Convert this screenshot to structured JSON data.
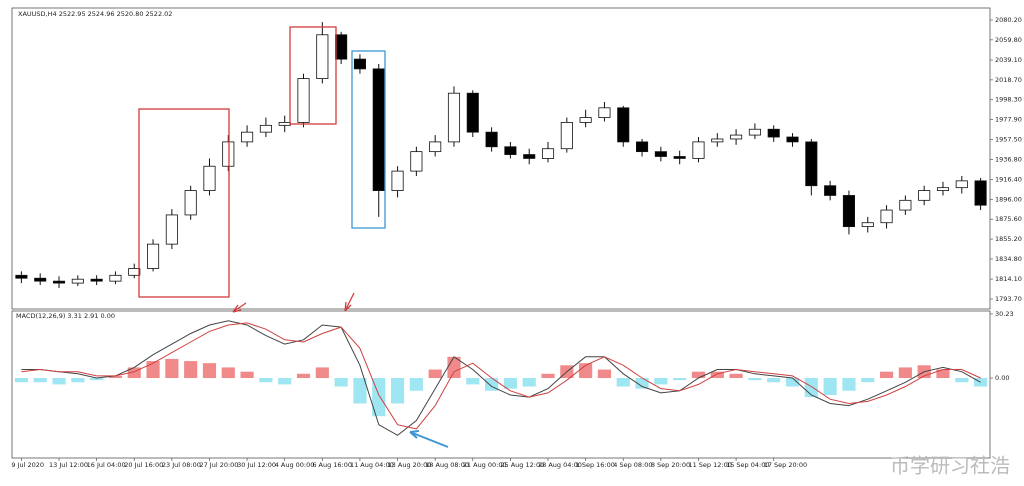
{
  "chart_data": [
    {
      "type": "candlestick",
      "title": "XAUUSD,H4  2522.95 2524.96 2520.80 2522.02",
      "open": [
        1818,
        1815,
        1812,
        1810,
        1814,
        1812,
        1818,
        1825,
        1850,
        1880,
        1905,
        1930,
        1955,
        1965,
        1972,
        1975,
        2020,
        2065,
        2040,
        2030,
        1905,
        1925,
        1945,
        1955,
        2005,
        1965,
        1950,
        1942,
        1938,
        1948,
        1975,
        1980,
        1990,
        1955,
        1945,
        1940,
        1938,
        1955,
        1958,
        1962,
        1968,
        1960,
        1955,
        1910,
        1900,
        1868,
        1872,
        1885,
        1895,
        1905,
        1908,
        1915
      ],
      "high": [
        1822,
        1820,
        1817,
        1818,
        1818,
        1822,
        1830,
        1855,
        1886,
        1910,
        1938,
        1962,
        1972,
        1980,
        1982,
        2025,
        2078,
        2068,
        2045,
        2035,
        1930,
        1950,
        1962,
        2012,
        2008,
        1970,
        1955,
        1948,
        1955,
        1980,
        1988,
        1996,
        1992,
        1958,
        1950,
        1946,
        1960,
        1964,
        1968,
        1974,
        1972,
        1964,
        1958,
        1915,
        1905,
        1878,
        1890,
        1900,
        1910,
        1914,
        1920,
        1918
      ],
      "low": [
        1810,
        1808,
        1805,
        1807,
        1808,
        1809,
        1815,
        1822,
        1845,
        1875,
        1900,
        1925,
        1950,
        1960,
        1965,
        1970,
        2015,
        2035,
        2025,
        1878,
        1898,
        1920,
        1940,
        1950,
        1960,
        1945,
        1938,
        1932,
        1934,
        1944,
        1970,
        1976,
        1950,
        1940,
        1935,
        1932,
        1934,
        1950,
        1952,
        1958,
        1955,
        1950,
        1900,
        1895,
        1860,
        1862,
        1866,
        1880,
        1890,
        1900,
        1902,
        1885
      ],
      "close": [
        1815,
        1812,
        1810,
        1814,
        1812,
        1818,
        1825,
        1850,
        1880,
        1905,
        1930,
        1955,
        1965,
        1972,
        1975,
        2020,
        2065,
        2040,
        2030,
        1905,
        1925,
        1945,
        1955,
        2005,
        1965,
        1950,
        1942,
        1938,
        1948,
        1975,
        1980,
        1990,
        1955,
        1945,
        1940,
        1938,
        1955,
        1958,
        1962,
        1968,
        1960,
        1955,
        1910,
        1900,
        1868,
        1872,
        1885,
        1895,
        1905,
        1908,
        1915,
        1890
      ],
      "up_color": "#ffffff",
      "down_color": "#000000",
      "ylim": [
        1783.4,
        2092.5
      ],
      "yticks": [
        {
          "value": 2080.2,
          "label": "2080.20"
        },
        {
          "value": 2059.8,
          "label": "2059.80"
        },
        {
          "value": 2039.1,
          "label": "2039.10"
        },
        {
          "value": 2018.7,
          "label": "2018.70"
        },
        {
          "value": 1998.3,
          "label": "1998.30"
        },
        {
          "value": 1977.9,
          "label": "1977.90"
        },
        {
          "value": 1957.5,
          "label": "1957.50"
        },
        {
          "value": 1936.8,
          "label": "1936.80"
        },
        {
          "value": 1916.4,
          "label": "1916.40"
        },
        {
          "value": 1896,
          "label": "1896.00"
        },
        {
          "value": 1875.6,
          "label": "1875.60"
        },
        {
          "value": 1855.2,
          "label": "1855.20"
        },
        {
          "value": 1834.8,
          "label": "1834.80"
        },
        {
          "value": 1814.1,
          "label": "1814.10"
        },
        {
          "value": 1793.7,
          "label": "1793.70"
        }
      ]
    },
    {
      "type": "macd",
      "title": "MACD(12,26,9) 3.31 2.91 0.00",
      "categories": [
        "9 Jul 2020",
        null,
        "13 Jul 12:00",
        null,
        "16 Jul 04:00",
        null,
        "20 Jul 16:00",
        null,
        "23 Jul 08:00",
        null,
        "27 Jul 20:00",
        null,
        "30 Jul 12:00",
        null,
        "4 Aug 00:00",
        null,
        "6 Aug 16:00",
        null,
        "11 Aug 04:00",
        null,
        "13 Aug 20:00",
        null,
        "18 Aug 08:00",
        null,
        "21 Aug 00:00",
        null,
        "25 Aug 12:00",
        null,
        "28 Aug 04:00",
        null,
        "1 Sep 16:00",
        null,
        "4 Sep 08:00",
        null,
        "8 Sep 20:00",
        null,
        "11 Sep 12:00",
        null,
        "15 Sep 04:00",
        null,
        "17 Sep 20:00",
        null,
        null,
        null,
        null,
        null,
        null,
        null,
        null,
        null,
        null,
        null
      ],
      "histogram": [
        -2,
        -2,
        -3,
        -2,
        -1,
        1,
        5,
        8,
        9,
        8,
        7,
        5,
        3,
        -2,
        -3,
        2,
        5,
        -4,
        -12,
        -18,
        -12,
        -6,
        4,
        10,
        -3,
        -6,
        -5,
        -4,
        2,
        6,
        7,
        4,
        -4,
        -5,
        -3,
        -1,
        3,
        3,
        2,
        -1,
        -2,
        -4,
        -9,
        -8,
        -6,
        -2,
        3,
        5,
        6,
        4,
        -2,
        -4
      ],
      "macd": [
        4,
        4,
        3,
        2,
        0,
        1,
        5,
        11,
        16,
        21,
        25,
        27,
        25,
        20,
        16,
        18,
        25,
        24,
        6,
        -22,
        -27,
        -20,
        -5,
        10,
        4,
        -4,
        -8,
        -9,
        -5,
        3,
        10,
        10,
        2,
        -4,
        -7,
        -6,
        0,
        4,
        4,
        2,
        1,
        0,
        -8,
        -12,
        -13,
        -10,
        -6,
        -2,
        3,
        5,
        3,
        -2
      ],
      "signal": [
        3,
        4,
        3,
        3,
        1,
        1,
        3,
        7,
        12,
        17,
        22,
        25,
        26,
        23,
        18,
        17,
        21,
        24,
        14,
        -8,
        -22,
        -24,
        -13,
        3,
        7,
        0,
        -6,
        -9,
        -7,
        -1,
        6,
        10,
        6,
        0,
        -5,
        -6,
        -3,
        2,
        4,
        3,
        2,
        1,
        -4,
        -10,
        -12,
        -11,
        -8,
        -4,
        1,
        4,
        4,
        0
      ],
      "pos_color": "#f08a8a",
      "neg_color": "#9ee6f2",
      "macd_color": "#444444",
      "signal_color": "#d04040",
      "ylim": [
        -37.7,
        31.6
      ],
      "yticks": [
        30.23,
        {
          "value": 0,
          "label": "0.00"
        }
      ]
    },
    {
      "watermark": "币学研习社浩"
    }
  ]
}
